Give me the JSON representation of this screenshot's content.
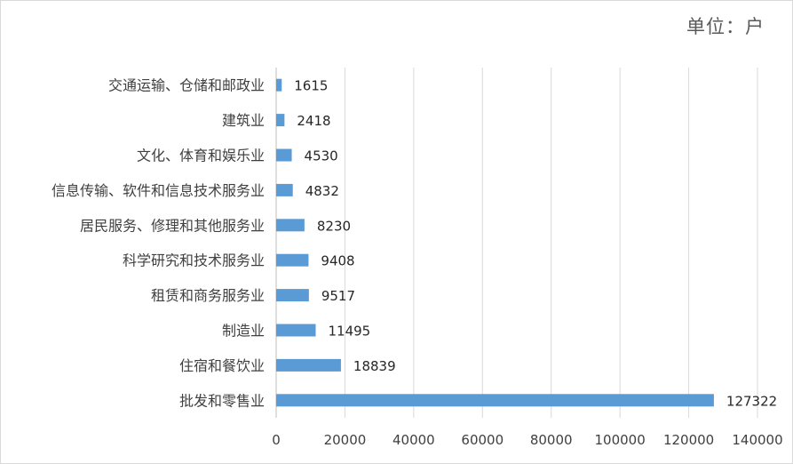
{
  "chart_data": {
    "type": "bar",
    "orientation": "horizontal",
    "unit_label": "单位：户",
    "title": "",
    "xlabel": "",
    "ylabel": "",
    "categories": [
      "交通运输、仓储和邮政业",
      "建筑业",
      "文化、体育和娱乐业",
      "信息传输、软件和信息技术服务业",
      "居民服务、修理和其他服务业",
      "科学研究和技术服务业",
      "租赁和商务服务业",
      "制造业",
      "住宿和餐饮业",
      "批发和零售业"
    ],
    "values": [
      1615,
      2418,
      4530,
      4832,
      8230,
      9408,
      9517,
      11495,
      18839,
      127322
    ],
    "xlim": [
      0,
      140000
    ],
    "xticks": [
      0,
      20000,
      40000,
      60000,
      80000,
      100000,
      120000,
      140000
    ],
    "grid": true,
    "bar_color": "#5b9bd5"
  }
}
